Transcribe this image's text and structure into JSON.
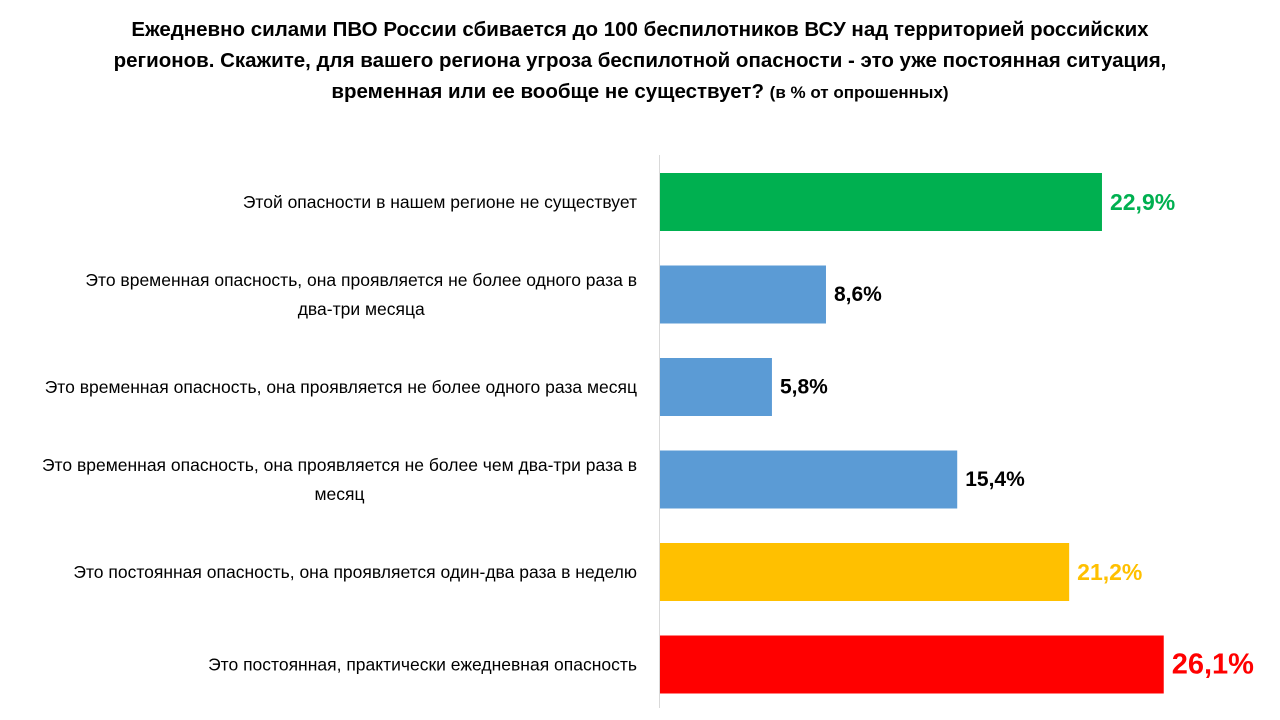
{
  "chart_data": {
    "type": "bar",
    "orientation": "horizontal",
    "title": "Ежедневно силами ПВО России сбивается до 100 беспилотников ВСУ над территорией российских регионов. Скажите, для вашего региона угроза беспилотной опасности - это уже постоянная ситуация, временная или ее вообще не существует?",
    "subtitle": "(в % от опрошенных)",
    "categories": [
      "Этой опасности в нашем регионе не существует",
      "Это временная опасность, она проявляется не более одного раза в два-три месяца",
      "Это временная опасность, она проявляется не более одного раза месяц",
      "Это временная опасность, она проявляется не более чем два-три раза в месяц",
      "Это постоянная опасность, она проявляется один-два раза в неделю",
      "Это постоянная, практически ежедневная опасность"
    ],
    "values": [
      22.9,
      8.6,
      5.8,
      15.4,
      21.2,
      26.1
    ],
    "data_labels": [
      "22,9%",
      "8,6%",
      "5,8%",
      "15,4%",
      "21,2%",
      "26,1%"
    ],
    "colors": [
      "#00B050",
      "#5B9BD5",
      "#5B9BD5",
      "#5B9BD5",
      "#FFC000",
      "#FF0000"
    ],
    "label_colors": [
      "#00B050",
      "#000000",
      "#000000",
      "#000000",
      "#FFC000",
      "#FF0000"
    ],
    "xlim": [
      0,
      27
    ],
    "grid": false,
    "legend": "none"
  }
}
